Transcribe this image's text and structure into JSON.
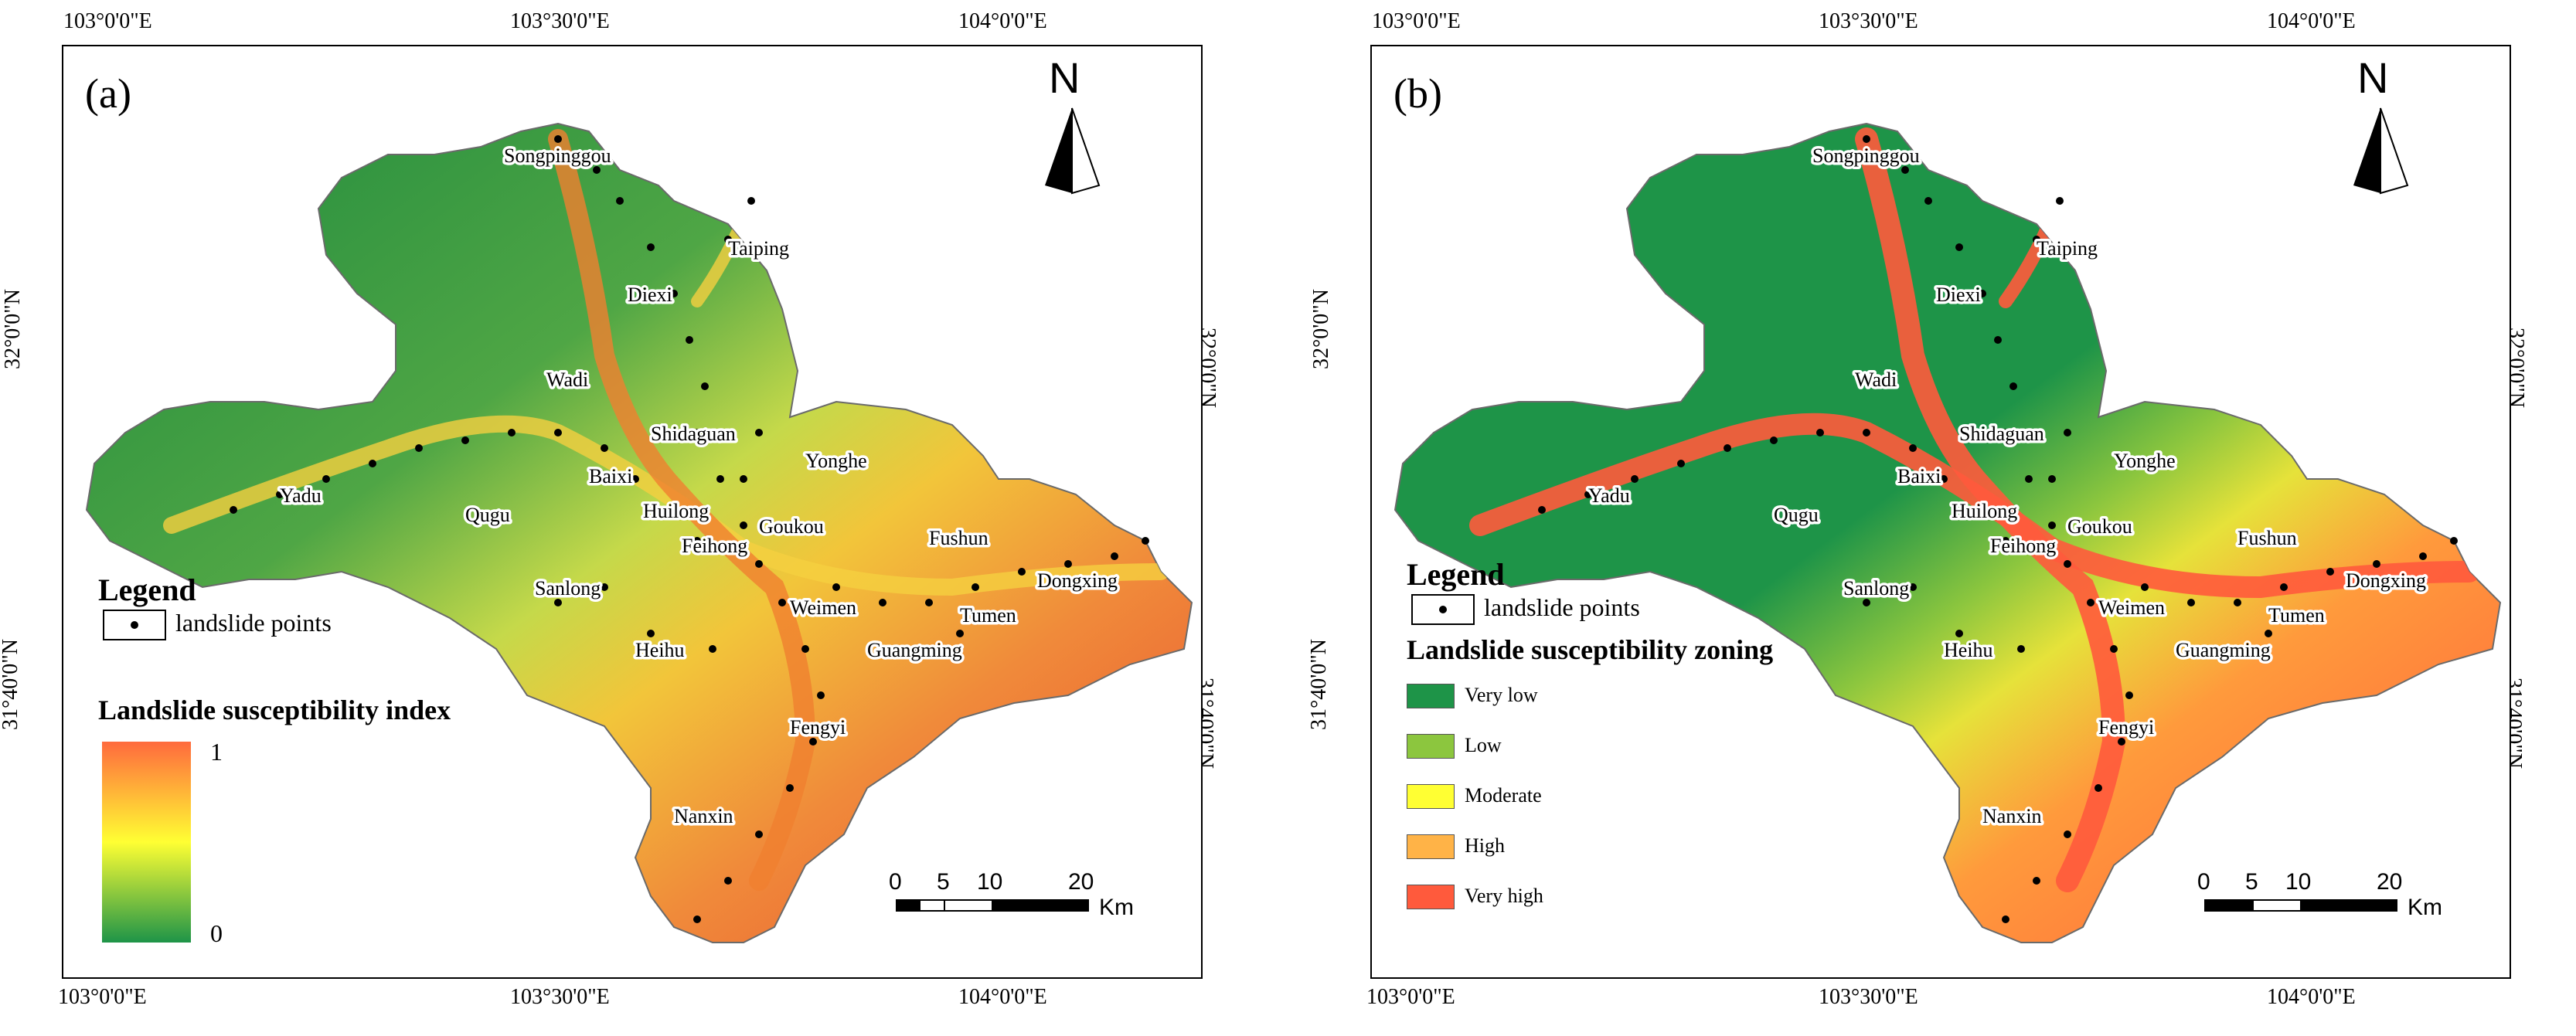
{
  "panels": [
    {
      "letter": "(a)",
      "top_labels": [
        "103°0'0\"E",
        "103°30'0\"E",
        "104°0'0\"E"
      ],
      "bottom_labels": [
        "103°0'0\"E",
        "103°30'0\"E",
        "104°0'0\"E"
      ],
      "left_labels": [
        "32°0'0\"N",
        "31°40'0\"N"
      ],
      "right_labels": [
        "32°0'0\"N",
        "31°40'0\"N"
      ],
      "north": "N",
      "legend": {
        "title": "Legend",
        "points_label": "landslide points",
        "subtitle": "Landslide susceptibility index",
        "ramp_max": "1",
        "ramp_min": "0"
      },
      "scale": {
        "ticks": [
          "0",
          "5",
          "10",
          "20"
        ],
        "unit": "Km"
      }
    },
    {
      "letter": "(b)",
      "top_labels": [
        "103°0'0\"E",
        "103°30'0\"E",
        "104°0'0\"E"
      ],
      "bottom_labels": [
        "103°0'0\"E",
        "103°30'0\"E",
        "104°0'0\"E"
      ],
      "left_labels": [
        "32°0'0\"N",
        "31°40'0\"N"
      ],
      "right_labels": [
        "32°0'0\"N",
        "31°40'0\"N"
      ],
      "north": "N",
      "legend": {
        "title": "Legend",
        "points_label": "landslide points",
        "subtitle": "Landslide susceptibility zoning",
        "classes": [
          {
            "label": "Very low",
            "color": "#1e9448"
          },
          {
            "label": "Low",
            "color": "#8cc63e"
          },
          {
            "label": "Moderate",
            "color": "#ffff33"
          },
          {
            "label": "High",
            "color": "#ffb347"
          },
          {
            "label": "Very high",
            "color": "#ff5a3c"
          }
        ]
      },
      "scale": {
        "ticks": [
          "0",
          "5",
          "10",
          "20"
        ],
        "unit": "Km"
      }
    }
  ],
  "towns": [
    "Songpinggou",
    "Taiping",
    "Diexi",
    "Wadi",
    "Shidaguan",
    "Yadu",
    "Baixi",
    "Qugu",
    "Huilong",
    "Yonghe",
    "Goukou",
    "Feihong",
    "Fushun",
    "Dongxing",
    "Sanlong",
    "Weimen",
    "Tumen",
    "Heihu",
    "Guangming",
    "Fengyi",
    "Nanxin"
  ],
  "colors": {
    "frame": "#000000",
    "dots": "#000000",
    "ramp_top": "#ff6a3d",
    "ramp_mid": "#ffff33",
    "ramp_bottom": "#1e9448"
  }
}
